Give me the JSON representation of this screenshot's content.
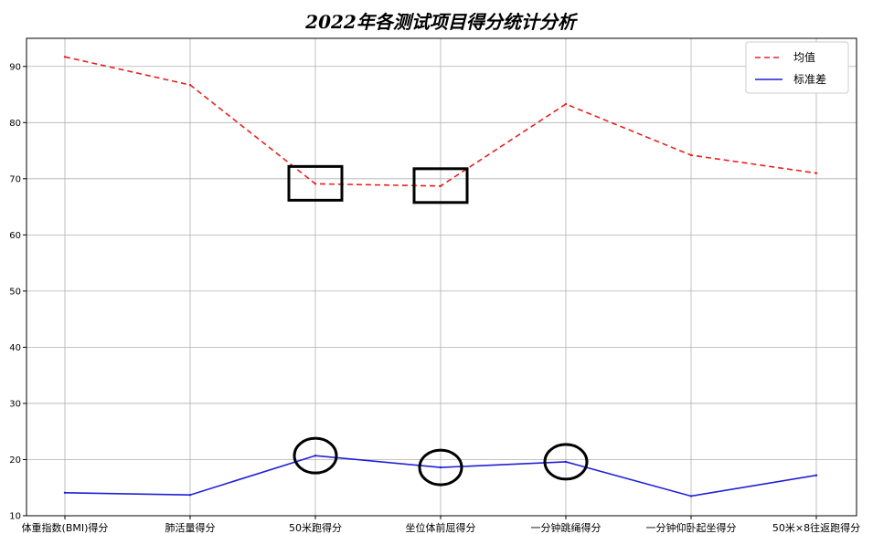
{
  "chart_data": {
    "type": "line",
    "title": "2022年各测试项目得分统计分析",
    "categories": [
      "体重指数(BMI)得分",
      "肺活量得分",
      "50米跑得分",
      "坐位体前屈得分",
      "一分钟跳绳得分",
      "一分钟仰卧起坐得分",
      "50米×8往返跑得分"
    ],
    "series": [
      {
        "name": "均值",
        "values": [
          91.7,
          86.7,
          69.1,
          68.7,
          83.3,
          74.2,
          71.0
        ],
        "color": "#e8201e",
        "dash": true
      },
      {
        "name": "标准差",
        "values": [
          14.1,
          13.7,
          20.7,
          18.6,
          19.6,
          13.5,
          17.2
        ],
        "color": "#1f1fd6",
        "dash": false
      }
    ],
    "xlabel": "",
    "ylabel": "",
    "ylim": [
      10,
      95
    ],
    "yticks": [
      10,
      20,
      30,
      40,
      50,
      60,
      70,
      80,
      90
    ],
    "grid": true,
    "legend_position": "top-right",
    "annotations": [
      {
        "shape": "rectangle",
        "category_index": 2,
        "series": "均值"
      },
      {
        "shape": "rectangle",
        "category_index": 3,
        "series": "均值"
      },
      {
        "shape": "circle",
        "category_index": 2,
        "series": "标准差"
      },
      {
        "shape": "circle",
        "category_index": 3,
        "series": "标准差"
      },
      {
        "shape": "circle",
        "category_index": 4,
        "series": "标准差"
      }
    ]
  }
}
